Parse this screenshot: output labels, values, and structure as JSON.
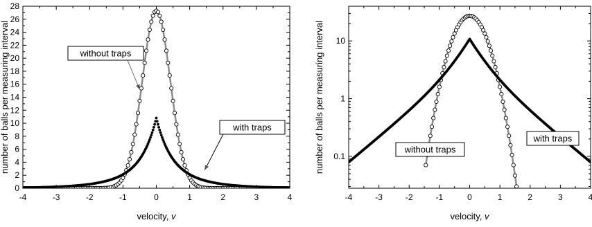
{
  "chart_data": [
    {
      "type": "scatter",
      "yscale": "linear",
      "xlabel": "velocity,",
      "xlabel_var": "v",
      "ylabel": "number of balls per measuring interval",
      "xlim": [
        -4,
        4
      ],
      "ylim": [
        0,
        28
      ],
      "xticks": [
        "-4",
        "-3",
        "-2",
        "-1",
        "0",
        "1",
        "2",
        "3",
        "4"
      ],
      "yticks": [
        "0",
        "2",
        "4",
        "6",
        "8",
        "10",
        "12",
        "14",
        "16",
        "18",
        "20",
        "22",
        "24",
        "26",
        "28"
      ],
      "series": [
        {
          "marker": "open-circle",
          "line_color": "#8c8c8c",
          "distribution": "gaussian",
          "peak_x": 0.0,
          "peak_y": 27.3,
          "sigma": 0.42,
          "x_range": [
            -4,
            4
          ],
          "step": 0.05
        },
        {
          "marker": "filled-dot",
          "distribution": "cusped-exponential",
          "peak_x": 0.0,
          "peak_y": 10.8,
          "x_range": [
            -4,
            4
          ],
          "step": 0.025
        }
      ],
      "annotations": [
        {
          "text": "without traps",
          "points_to": {
            "x": -0.5,
            "y": 15.2
          }
        },
        {
          "text": "with traps",
          "points_to": {
            "x": 1.45,
            "y": 2.8
          }
        }
      ]
    },
    {
      "type": "scatter",
      "yscale": "log",
      "xlabel": "velocity,",
      "xlabel_var": "v",
      "ylabel": "number of balls per measuring interval",
      "xlim": [
        -4,
        4
      ],
      "ylim": [
        0.028,
        40
      ],
      "xticks": [
        "-4",
        "-3",
        "-2",
        "-1",
        "0",
        "1",
        "2",
        "3",
        "4"
      ],
      "yticks": [
        "0.1",
        "1",
        "10"
      ],
      "series": [
        {
          "marker": "open-circle",
          "line_color": "#8c8c8c",
          "distribution": "gaussian",
          "peak_x": 0.0,
          "peak_y": 27.3,
          "sigma": 0.42,
          "x_range": [
            -1.45,
            1.55
          ],
          "step": 0.05
        },
        {
          "marker": "filled-dot",
          "distribution": "cusped-exponential",
          "peak_x": 0.0,
          "peak_y": 10.8,
          "x_range": [
            -4,
            4
          ],
          "step": 0.025
        }
      ],
      "annotations": [
        {
          "text": "without traps"
        },
        {
          "text": "with traps"
        }
      ]
    }
  ]
}
